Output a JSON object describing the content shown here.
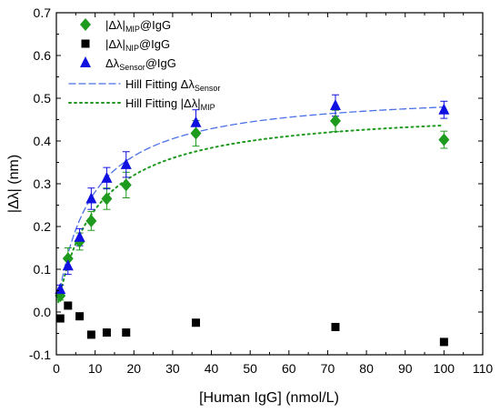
{
  "chart_data": {
    "type": "scatter",
    "xlabel": "[Human IgG] (nmol/L)",
    "ylabel": "|Δλ| (nm)",
    "xlim": [
      0,
      110
    ],
    "ylim": [
      -0.1,
      0.7
    ],
    "xticks": [
      0,
      10,
      20,
      30,
      40,
      50,
      60,
      70,
      80,
      90,
      100,
      110
    ],
    "yticks": [
      -0.1,
      0.0,
      0.1,
      0.2,
      0.3,
      0.4,
      0.5,
      0.6,
      0.7
    ],
    "grid": false,
    "legend_position": "top-left",
    "series": [
      {
        "key": "mip",
        "label_main": "|Δλ|",
        "label_sub": "MIP",
        "label_tail": "@IgG",
        "marker": "diamond",
        "color": "#1e9a1e",
        "x": [
          1,
          3,
          6,
          9,
          13,
          18,
          36,
          72,
          100
        ],
        "y": [
          0.038,
          0.125,
          0.165,
          0.213,
          0.265,
          0.297,
          0.418,
          0.447,
          0.403
        ],
        "err": [
          0.01,
          0.025,
          0.02,
          0.022,
          0.025,
          0.03,
          0.03,
          0.025,
          0.02
        ]
      },
      {
        "key": "nip",
        "label_main": "|Δλ|",
        "label_sub": "NIP",
        "label_tail": "@IgG",
        "marker": "square",
        "color": "#000000",
        "x": [
          1,
          3,
          6,
          9,
          13,
          18,
          36,
          72,
          100
        ],
        "y": [
          -0.015,
          0.015,
          -0.01,
          -0.053,
          -0.048,
          -0.048,
          -0.025,
          -0.035,
          -0.07
        ],
        "err": [
          0,
          0,
          0,
          0,
          0,
          0,
          0,
          0,
          0
        ]
      },
      {
        "key": "sensor",
        "label_main": "Δλ",
        "label_sub": "Sensor",
        "label_tail": "@IgG",
        "marker": "triangle",
        "color": "#1010e0",
        "x": [
          1,
          3,
          6,
          9,
          13,
          18,
          36,
          72,
          100
        ],
        "y": [
          0.053,
          0.108,
          0.175,
          0.265,
          0.313,
          0.345,
          0.443,
          0.483,
          0.473
        ],
        "err": [
          0.01,
          0.02,
          0.02,
          0.025,
          0.025,
          0.03,
          0.03,
          0.025,
          0.02
        ]
      }
    ],
    "fits": [
      {
        "key": "fit_sensor",
        "label_main": "Hill Fitting Δλ",
        "label_sub": "Sensor",
        "style": "dashed",
        "color": "#4a70e8",
        "ymax": 0.52,
        "k": 8.5,
        "n": 1.0,
        "x_range": [
          0.5,
          100
        ]
      },
      {
        "key": "fit_mip",
        "label_main": "Hill Fitting |Δλ|",
        "label_sub": "MIP",
        "style": "dotted",
        "color": "#1e9a1e",
        "ymax": 0.48,
        "k": 10.0,
        "n": 1.0,
        "x_range": [
          0.5,
          100
        ]
      }
    ]
  }
}
